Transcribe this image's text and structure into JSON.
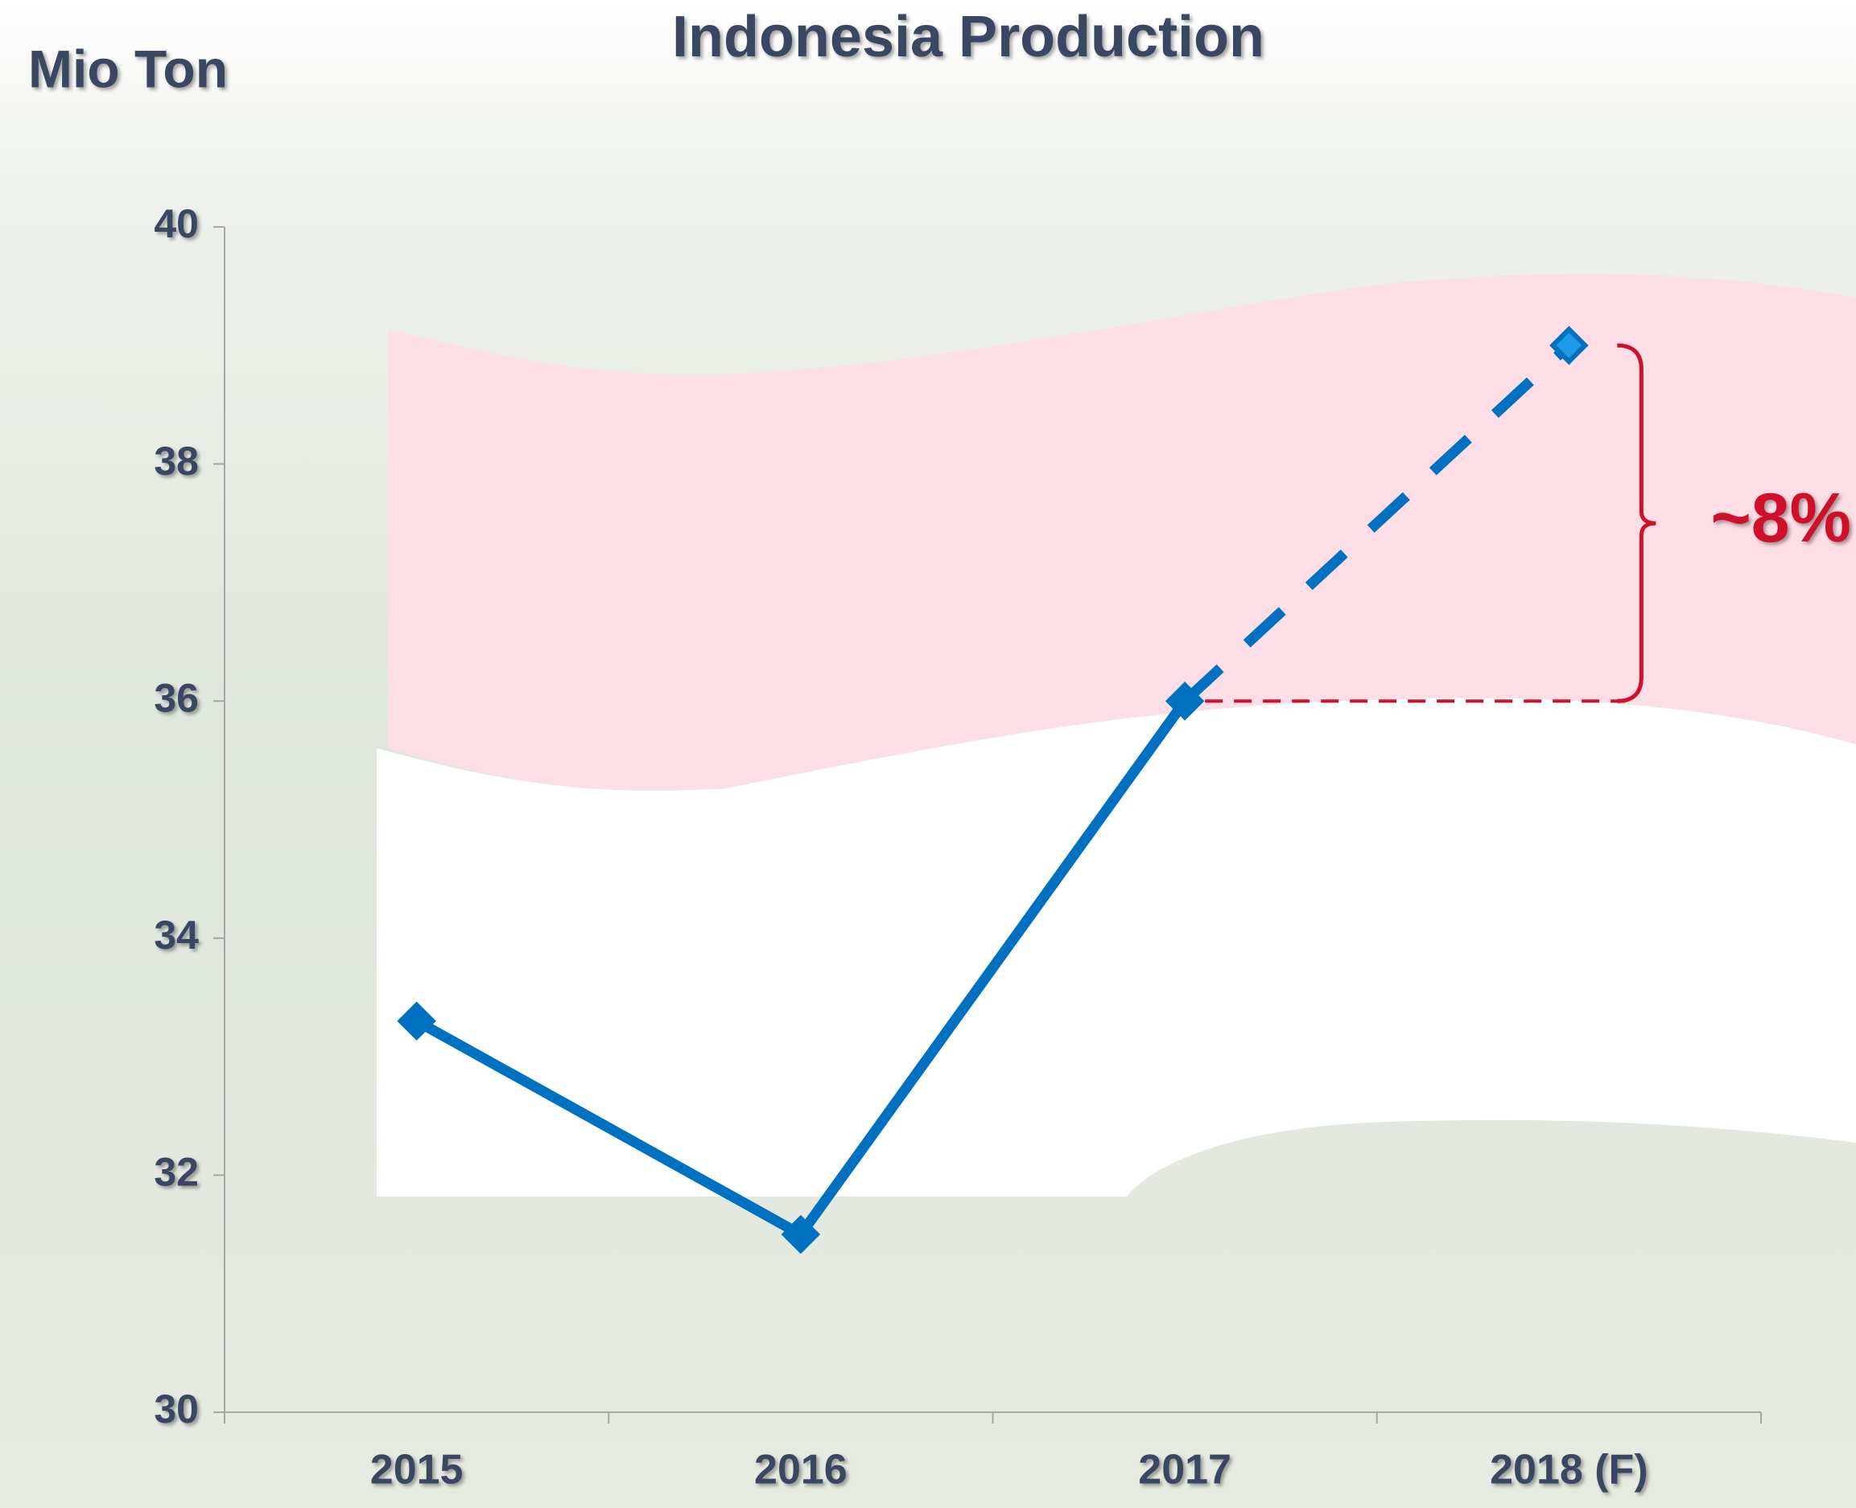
{
  "chart_data": {
    "type": "line",
    "title": "Indonesia Production",
    "y_label": "Mio Ton",
    "categories": [
      "2015",
      "2016",
      "2017",
      "2018 (F)"
    ],
    "series": [
      {
        "name": "Indonesia Production",
        "color": "#0070c0",
        "values": [
          33.3,
          31.5,
          36,
          39
        ],
        "styles": [
          "solid",
          "solid",
          "solid",
          "dashed"
        ]
      }
    ],
    "ylim": [
      30,
      40
    ],
    "yticks": [
      30,
      32,
      34,
      36,
      38,
      40
    ],
    "grid": false,
    "annotation": {
      "text": "~8%",
      "color": "#d0102a"
    }
  }
}
